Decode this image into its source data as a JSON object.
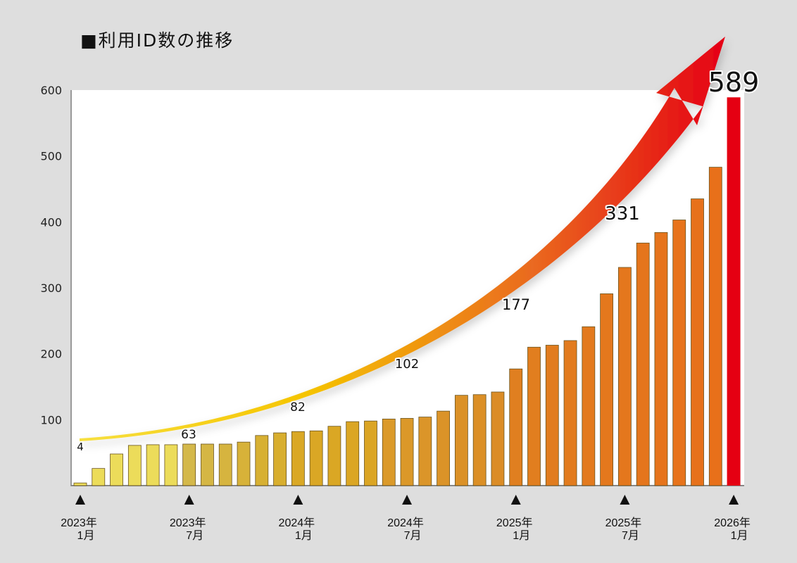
{
  "chart_data": {
    "type": "bar",
    "title": "■利用ID数の推移",
    "xlabel": "",
    "ylabel": "",
    "ylim": [
      0,
      600
    ],
    "yticks": [
      100,
      200,
      300,
      400,
      500,
      600
    ],
    "grid": false,
    "categories": [
      "2023-01",
      "2023-02",
      "2023-03",
      "2023-04",
      "2023-05",
      "2023-06",
      "2023-07",
      "2023-08",
      "2023-09",
      "2023-10",
      "2023-11",
      "2023-12",
      "2024-01",
      "2024-02",
      "2024-03",
      "2024-04",
      "2024-05",
      "2024-06",
      "2024-07",
      "2024-08",
      "2024-09",
      "2024-10",
      "2024-11",
      "2024-12",
      "2025-01",
      "2025-02",
      "2025-03",
      "2025-04",
      "2025-05",
      "2025-06",
      "2025-07",
      "2025-08",
      "2025-09",
      "2025-10",
      "2025-11",
      "2025-12",
      "2026-01"
    ],
    "values": [
      4,
      26,
      48,
      61,
      62,
      62,
      63,
      63,
      63,
      66,
      76,
      80,
      82,
      83,
      90,
      97,
      98,
      101,
      102,
      104,
      113,
      137,
      138,
      142,
      177,
      210,
      213,
      220,
      241,
      291,
      331,
      368,
      384,
      403,
      435,
      483,
      589
    ],
    "x_tick_labels": [
      {
        "index": 0,
        "year": "2023年",
        "month": "1月"
      },
      {
        "index": 6,
        "year": "2023年",
        "month": "7月"
      },
      {
        "index": 12,
        "year": "2024年",
        "month": "1月"
      },
      {
        "index": 18,
        "year": "2024年",
        "month": "7月"
      },
      {
        "index": 24,
        "year": "2025年",
        "month": "1月"
      },
      {
        "index": 30,
        "year": "2025年",
        "month": "7月"
      },
      {
        "index": 36,
        "year": "2026年",
        "month": "1月"
      }
    ],
    "data_labels": [
      {
        "index": 0,
        "text": "4"
      },
      {
        "index": 6,
        "text": "63"
      },
      {
        "index": 12,
        "text": "82"
      },
      {
        "index": 18,
        "text": "102"
      },
      {
        "index": 24,
        "text": "177"
      },
      {
        "index": 30,
        "text": "331"
      },
      {
        "index": 36,
        "text": "589"
      }
    ],
    "annotation": "upward-trend-arrow",
    "colors": {
      "start": "#ecdc5a",
      "mid": "#d9ac28",
      "orange": "#e8701a",
      "highlight": "#e50012",
      "arrow_start": "#f5d000",
      "arrow_end": "#e50012"
    }
  }
}
